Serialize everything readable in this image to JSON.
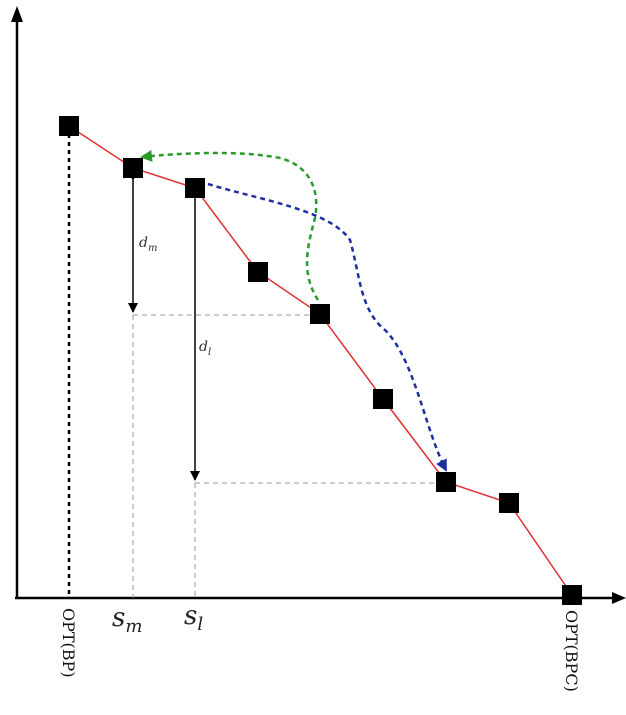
{
  "labels": {
    "d_m": "d",
    "d_m_sub": "m",
    "d_l": "d",
    "d_l_sub": "l",
    "s_m": "s",
    "s_m_sub": "m",
    "s_l": "s",
    "s_l_sub": "l",
    "opt_bp": "OPT(BP)",
    "opt_bpc": "OPT(BPC)"
  },
  "colors": {
    "curve": "#e03030",
    "node": "#000000",
    "green_arrow": "#2a9a2a",
    "blue_arrow": "#1f2fa0",
    "guide": "#9a9a9a"
  }
}
